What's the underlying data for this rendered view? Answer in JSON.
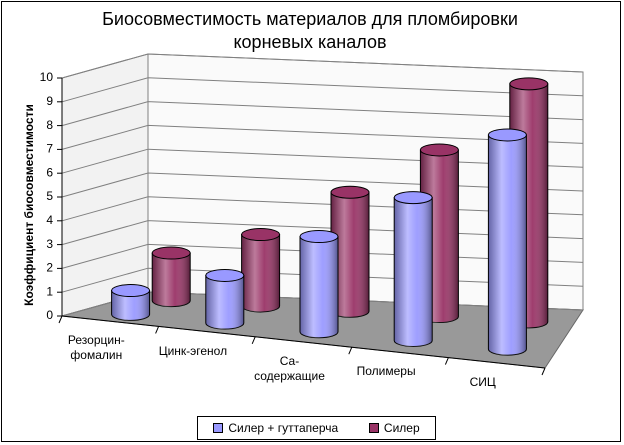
{
  "chart_data": {
    "type": "bar3d",
    "title": "Биосовместимость материалов для пломбировки корневых каналов",
    "y_label": "Коэффициент биосовместимости",
    "categories": [
      "Резорцин-фомалин",
      "Цинк-эгенол",
      "Са-содержащие",
      "Полимеры",
      "СИЦ"
    ],
    "series": [
      {
        "name": "Силер + гуттаперча",
        "color": "#9999ff",
        "values": [
          1,
          2,
          4,
          6,
          9
        ]
      },
      {
        "name": "Силер",
        "color": "#993366",
        "values": [
          2,
          3,
          5,
          7,
          10
        ]
      }
    ],
    "ylim": [
      0,
      10
    ],
    "yticks": [
      0,
      1,
      2,
      3,
      4,
      5,
      6,
      7,
      8,
      9,
      10
    ],
    "grid": true,
    "legend": "bottom"
  }
}
